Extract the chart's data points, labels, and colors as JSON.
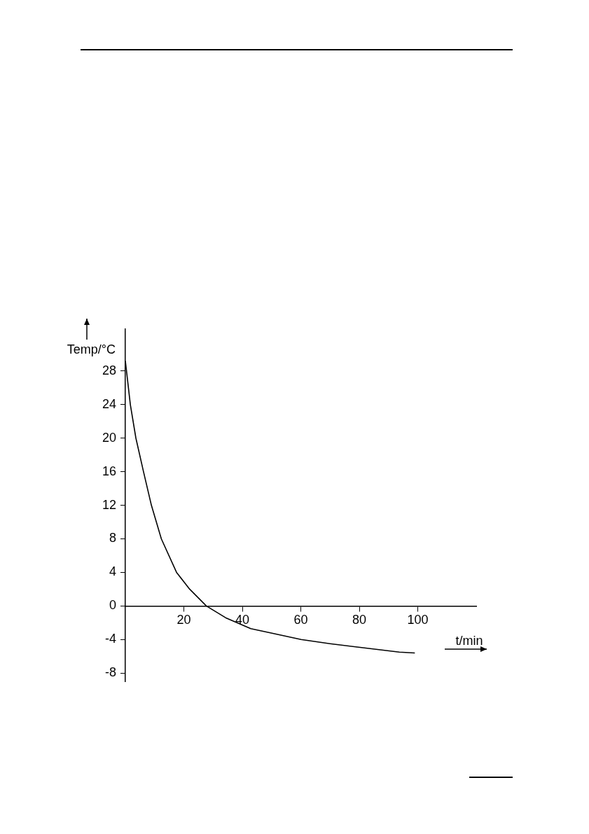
{
  "chart_data": {
    "type": "line",
    "xlabel": "t/min",
    "ylabel": "Temp/°C",
    "xlim": [
      0,
      120
    ],
    "xticks": [
      20,
      40,
      60,
      80,
      100
    ],
    "ylim": [
      -9,
      33
    ],
    "yticks": [
      -8,
      -4,
      0,
      4,
      8,
      12,
      16,
      20,
      24,
      28
    ],
    "grid": false,
    "legend": false,
    "marker": "none",
    "line_style": "solid",
    "series": [
      {
        "color": "#000000",
        "x": [
          0,
          1.7,
          3.6,
          6.2,
          8.9,
          12.3,
          17.5,
          22,
          27.7,
          34.3,
          42.9,
          49.6,
          60.1,
          70,
          79.3,
          93.7,
          99
        ],
        "values": [
          29.2,
          24,
          20,
          16,
          12,
          8,
          4,
          2,
          0,
          -1.4,
          -2.7,
          -3.2,
          -4,
          -4.5,
          -4.9,
          -5.5,
          -5.6
        ]
      }
    ]
  }
}
